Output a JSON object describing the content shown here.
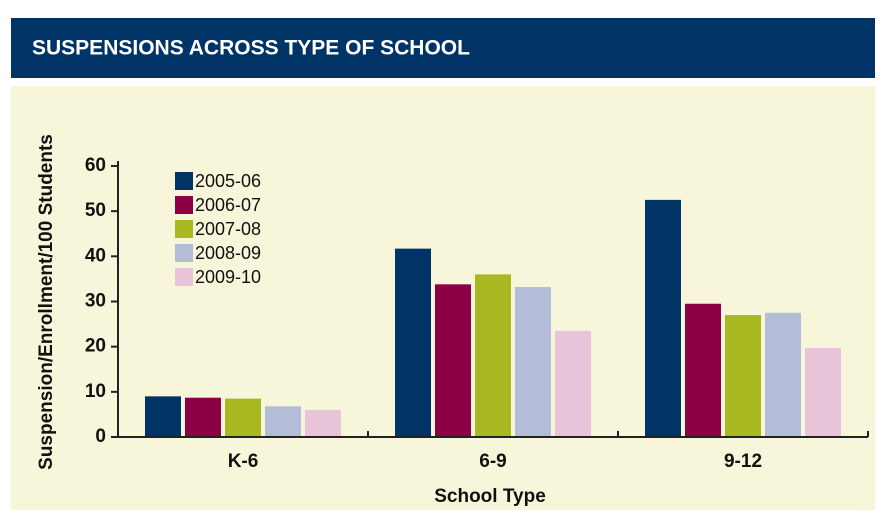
{
  "chart_data": {
    "type": "bar",
    "title": "SUSPENSIONS ACROSS TYPE OF SCHOOL",
    "x_label": "School Type",
    "y_label": "Suspension/Enrollment/100 Students",
    "categories": [
      "K-6",
      "6-9",
      "9-12"
    ],
    "series": [
      {
        "name": "2005-06",
        "color": "#003366",
        "values": [
          9,
          41.7,
          52.5
        ]
      },
      {
        "name": "2006-07",
        "color": "#8b0046",
        "values": [
          8.7,
          33.8,
          29.5
        ]
      },
      {
        "name": "2007-08",
        "color": "#a8b820",
        "values": [
          8.5,
          36,
          27
        ]
      },
      {
        "name": "2008-09",
        "color": "#b3bdd8",
        "values": [
          6.8,
          33.2,
          27.5
        ]
      },
      {
        "name": "2009-10",
        "color": "#e8c4d8",
        "values": [
          6,
          23.5,
          19.7
        ]
      }
    ],
    "ylim": [
      0,
      60
    ],
    "yticks": [
      0,
      10,
      20,
      30,
      40,
      50,
      60
    ],
    "legend": "upper left"
  }
}
